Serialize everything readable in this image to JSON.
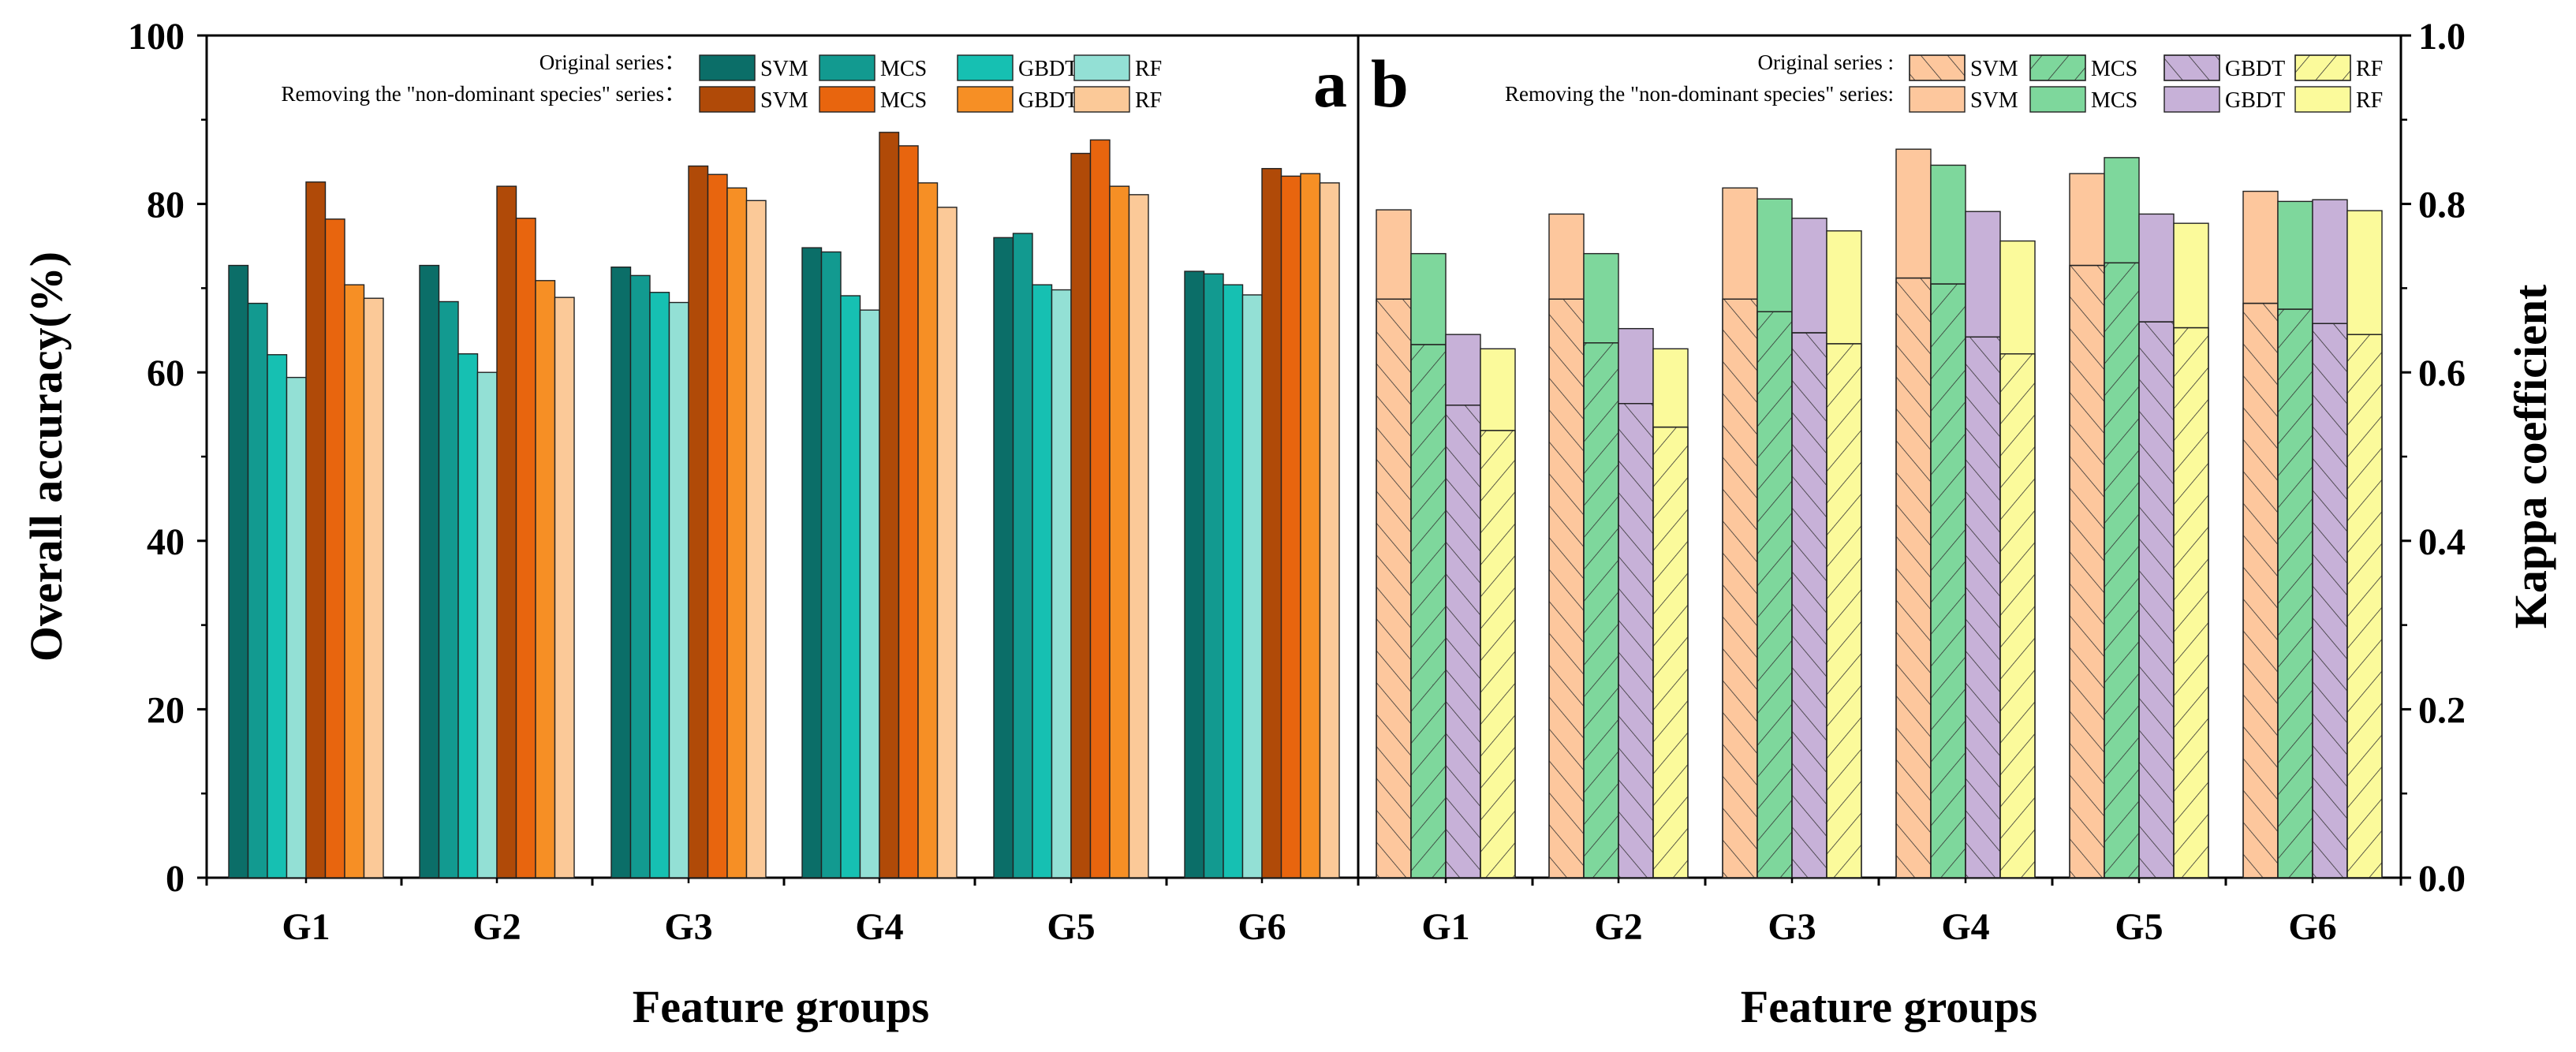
{
  "chart_data": [
    {
      "type": "bar",
      "panel": "a",
      "categories": [
        "G1",
        "G2",
        "G3",
        "G4",
        "G5",
        "G6"
      ],
      "xlabel": "Feature groups",
      "ylabel": "Overall accuracy(%)",
      "ylim": [
        0,
        100
      ],
      "yticks": [
        "0",
        "20",
        "40",
        "60",
        "80",
        "100"
      ],
      "legend": {
        "position": "top-right",
        "original_label": "Original series：",
        "removed_label": "Removing the \"non-dominant species\" series："
      },
      "series": [
        {
          "name": "SVM",
          "group": "Original series",
          "color": "#0b6e68",
          "values": [
            72.7,
            72.7,
            72.5,
            74.8,
            76.0,
            72.0
          ]
        },
        {
          "name": "MCS",
          "group": "Original series",
          "color": "#129a90",
          "values": [
            68.2,
            68.4,
            71.5,
            74.3,
            76.5,
            71.7
          ]
        },
        {
          "name": "GBDT",
          "group": "Original series",
          "color": "#16c0b2",
          "values": [
            62.1,
            62.2,
            69.5,
            69.1,
            70.4,
            70.4
          ]
        },
        {
          "name": "RF",
          "group": "Original series",
          "color": "#93e0d5",
          "values": [
            59.4,
            60.0,
            68.3,
            67.4,
            69.8,
            69.2
          ]
        },
        {
          "name": "SVM",
          "group": "Removing the \"non-dominant species\" series",
          "color": "#b04a08",
          "values": [
            82.6,
            82.1,
            84.5,
            88.5,
            86.0,
            84.2
          ]
        },
        {
          "name": "MCS",
          "group": "Removing the \"non-dominant species\" series",
          "color": "#e8650e",
          "values": [
            78.2,
            78.3,
            83.5,
            86.9,
            87.6,
            83.3
          ]
        },
        {
          "name": "GBDT",
          "group": "Removing the \"non-dominant species\" series",
          "color": "#f68f25",
          "values": [
            70.4,
            70.9,
            81.9,
            82.5,
            82.1,
            83.6
          ]
        },
        {
          "name": "RF",
          "group": "Removing the \"non-dominant species\" series",
          "color": "#fbc998",
          "values": [
            68.8,
            68.9,
            80.4,
            79.6,
            81.1,
            82.5
          ]
        }
      ]
    },
    {
      "type": "bar",
      "panel": "b",
      "categories": [
        "G1",
        "G2",
        "G3",
        "G4",
        "G5",
        "G6"
      ],
      "xlabel": "Feature groups",
      "ylabel": "Kappa coefficient",
      "ylim": [
        0.0,
        1.0
      ],
      "yticks": [
        "0.0",
        "0.2",
        "0.4",
        "0.6",
        "0.8",
        "1.0"
      ],
      "legend": {
        "position": "top-right",
        "original_label": "Original series :",
        "removed_label": "Removing the \"non-dominant species\" series:"
      },
      "series": [
        {
          "name": "SVM",
          "group": "Original series",
          "color": "#fdc79d",
          "hatch": "back",
          "values": [
            0.687,
            0.687,
            0.687,
            0.712,
            0.727,
            0.682
          ]
        },
        {
          "name": "MCS",
          "group": "Original series",
          "color": "#7ed79c",
          "hatch": "fwd",
          "values": [
            0.633,
            0.635,
            0.672,
            0.705,
            0.73,
            0.675
          ]
        },
        {
          "name": "GBDT",
          "group": "Original series",
          "color": "#c7b1d8",
          "hatch": "back",
          "values": [
            0.561,
            0.563,
            0.647,
            0.642,
            0.66,
            0.658
          ]
        },
        {
          "name": "RF",
          "group": "Original series",
          "color": "#fbfa9b",
          "hatch": "fwd",
          "values": [
            0.531,
            0.535,
            0.634,
            0.622,
            0.653,
            0.645
          ]
        },
        {
          "name": "SVM",
          "group": "Removing the \"non-dominant species\" series",
          "color": "#fdc79d",
          "values": [
            0.793,
            0.788,
            0.819,
            0.865,
            0.836,
            0.815
          ]
        },
        {
          "name": "MCS",
          "group": "Removing the \"non-dominant species\" series",
          "color": "#7ed79c",
          "values": [
            0.741,
            0.741,
            0.806,
            0.846,
            0.855,
            0.803
          ]
        },
        {
          "name": "GBDT",
          "group": "Removing the \"non-dominant species\" series",
          "color": "#c7b1d8",
          "values": [
            0.645,
            0.652,
            0.783,
            0.791,
            0.788,
            0.805
          ]
        },
        {
          "name": "RF",
          "group": "Removing the \"non-dominant species\" series",
          "color": "#fbfa9b",
          "values": [
            0.628,
            0.628,
            0.768,
            0.756,
            0.777,
            0.792
          ]
        }
      ]
    }
  ]
}
